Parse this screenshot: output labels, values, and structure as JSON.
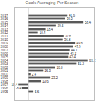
{
  "chart_data": {
    "type": "bar",
    "orientation": "horizontal",
    "title": "Goals Averaging Per Season",
    "categories": [
      "2017",
      "2016",
      "2015",
      "2014",
      "2013",
      "2012",
      "2011",
      "2010",
      "2009",
      "2008",
      "2007",
      "2006",
      "2005",
      "2004",
      "2003",
      "2002",
      "2001",
      "2000",
      "1999",
      "1998",
      "1997",
      "1996",
      "1995"
    ],
    "values": [
      41.6,
      39.2,
      58.4,
      29.6,
      18.4,
      10.4,
      37.6,
      36.8,
      49.6,
      47.9,
      44.1,
      43.2,
      42.4,
      63.2,
      51.2,
      28.8,
      16.0,
      2.4,
      23.2,
      13.6,
      -10.4,
      -6.4,
      5.6
    ],
    "value_labels": [
      "41.6",
      "39.2",
      "58.4",
      "29.6",
      "18.4",
      "10.4",
      "37.6",
      "36.8",
      "49.6",
      "47.9",
      "44.1",
      "43.2",
      "42.4",
      "63.2",
      "51.2",
      "28.8",
      "16.0",
      "2.4",
      "23.2",
      "13.6",
      "-10.4",
      "-6.4",
      "5.6"
    ],
    "color": "#595959",
    "xlim": [
      -15,
      70
    ],
    "xticks": [],
    "tick_labels": "y",
    "grid": false,
    "data_labels": true
  }
}
